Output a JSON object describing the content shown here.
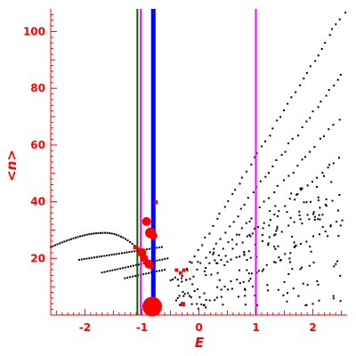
{
  "chart_data": {
    "type": "scatter",
    "xlabel": "E",
    "ylabel": "<n>",
    "xlim": [
      -2.6,
      2.6
    ],
    "ylim": [
      0,
      108
    ],
    "x_ticks": [
      -2,
      -1,
      0,
      1,
      2
    ],
    "y_ticks": [
      20,
      40,
      60,
      80,
      100
    ],
    "x_tick_labels": [
      "-2",
      "-1",
      "0",
      "1",
      "2"
    ],
    "y_tick_labels": [
      "20",
      "40",
      "60",
      "80",
      "100"
    ],
    "grid": false,
    "colors": {
      "axis": "#ff0000",
      "points": "#000000",
      "highlight": "#ff0000",
      "line_green": "#006400",
      "line_magenta": "#ff00ff",
      "line_blue": "#0000ff"
    },
    "vertical_lines": [
      {
        "x": -1.08,
        "color": "#006400",
        "width": 2
      },
      {
        "x": -1.02,
        "color": "#ff00ff",
        "width": 2
      },
      {
        "x": -0.8,
        "color": "#0000ff",
        "width": 5
      },
      {
        "x": 1.0,
        "color": "#ff00ff",
        "width": 2
      }
    ],
    "black_points_rays": [
      {
        "x_start": -0.35,
        "x_end": 2.55,
        "y_start": 12,
        "y_end": 107,
        "n": 45
      },
      {
        "x_start": -0.1,
        "x_end": 2.5,
        "y_start": 14,
        "y_end": 85,
        "n": 38
      },
      {
        "x_start": 0.1,
        "x_end": 2.45,
        "y_start": 16,
        "y_end": 69,
        "n": 30
      },
      {
        "x_start": 0.3,
        "x_end": 2.45,
        "y_start": 18,
        "y_end": 55,
        "n": 24
      },
      {
        "x_start": 0.55,
        "x_end": 2.45,
        "y_start": 19,
        "y_end": 42,
        "n": 18
      }
    ],
    "black_points_left_branches": [
      {
        "x_start": -2.6,
        "x_end": -1.05,
        "y_start": 24,
        "y_end": 23,
        "peak_x": -1.65,
        "peak_y": 29,
        "n": 40
      },
      {
        "x_start": -2.1,
        "x_end": -0.65,
        "y_start": 19.5,
        "y_end": 24,
        "n": 34
      },
      {
        "x_start": -1.7,
        "x_end": -0.55,
        "y_start": 15,
        "y_end": 20,
        "n": 26
      },
      {
        "x_start": -1.3,
        "x_end": -0.6,
        "y_start": 13,
        "y_end": 16,
        "n": 16
      }
    ],
    "black_points_lower_diagonal": [
      {
        "x_start": 0.0,
        "x_end": 2.5,
        "y_start": 2,
        "y_end": 34,
        "n": 26
      }
    ],
    "black_points_cloud_seed": 7,
    "black_points_cloud_count": 170,
    "red_points": [
      {
        "x": -0.82,
        "y": 3,
        "size": 18
      },
      {
        "x": -0.92,
        "y": 33,
        "size": 6
      },
      {
        "x": -0.85,
        "y": 29,
        "size": 8
      },
      {
        "x": -0.8,
        "y": 28,
        "size": 5
      },
      {
        "x": -1.0,
        "y": 22,
        "size": 6
      },
      {
        "x": -0.96,
        "y": 20,
        "size": 5
      },
      {
        "x": -1.08,
        "y": 23.5,
        "size": 3
      },
      {
        "x": -1.13,
        "y": 24,
        "size": 3
      },
      {
        "x": -0.88,
        "y": 18,
        "size": 6
      },
      {
        "x": -0.84,
        "y": 17,
        "size": 3
      },
      {
        "x": -0.76,
        "y": 40,
        "size": 3
      },
      {
        "x": -0.4,
        "y": 16,
        "size": 3
      },
      {
        "x": -0.33,
        "y": 15,
        "size": 3
      },
      {
        "x": -0.27,
        "y": 16,
        "size": 3
      },
      {
        "x": -0.29,
        "y": 4,
        "size": 4
      }
    ]
  }
}
